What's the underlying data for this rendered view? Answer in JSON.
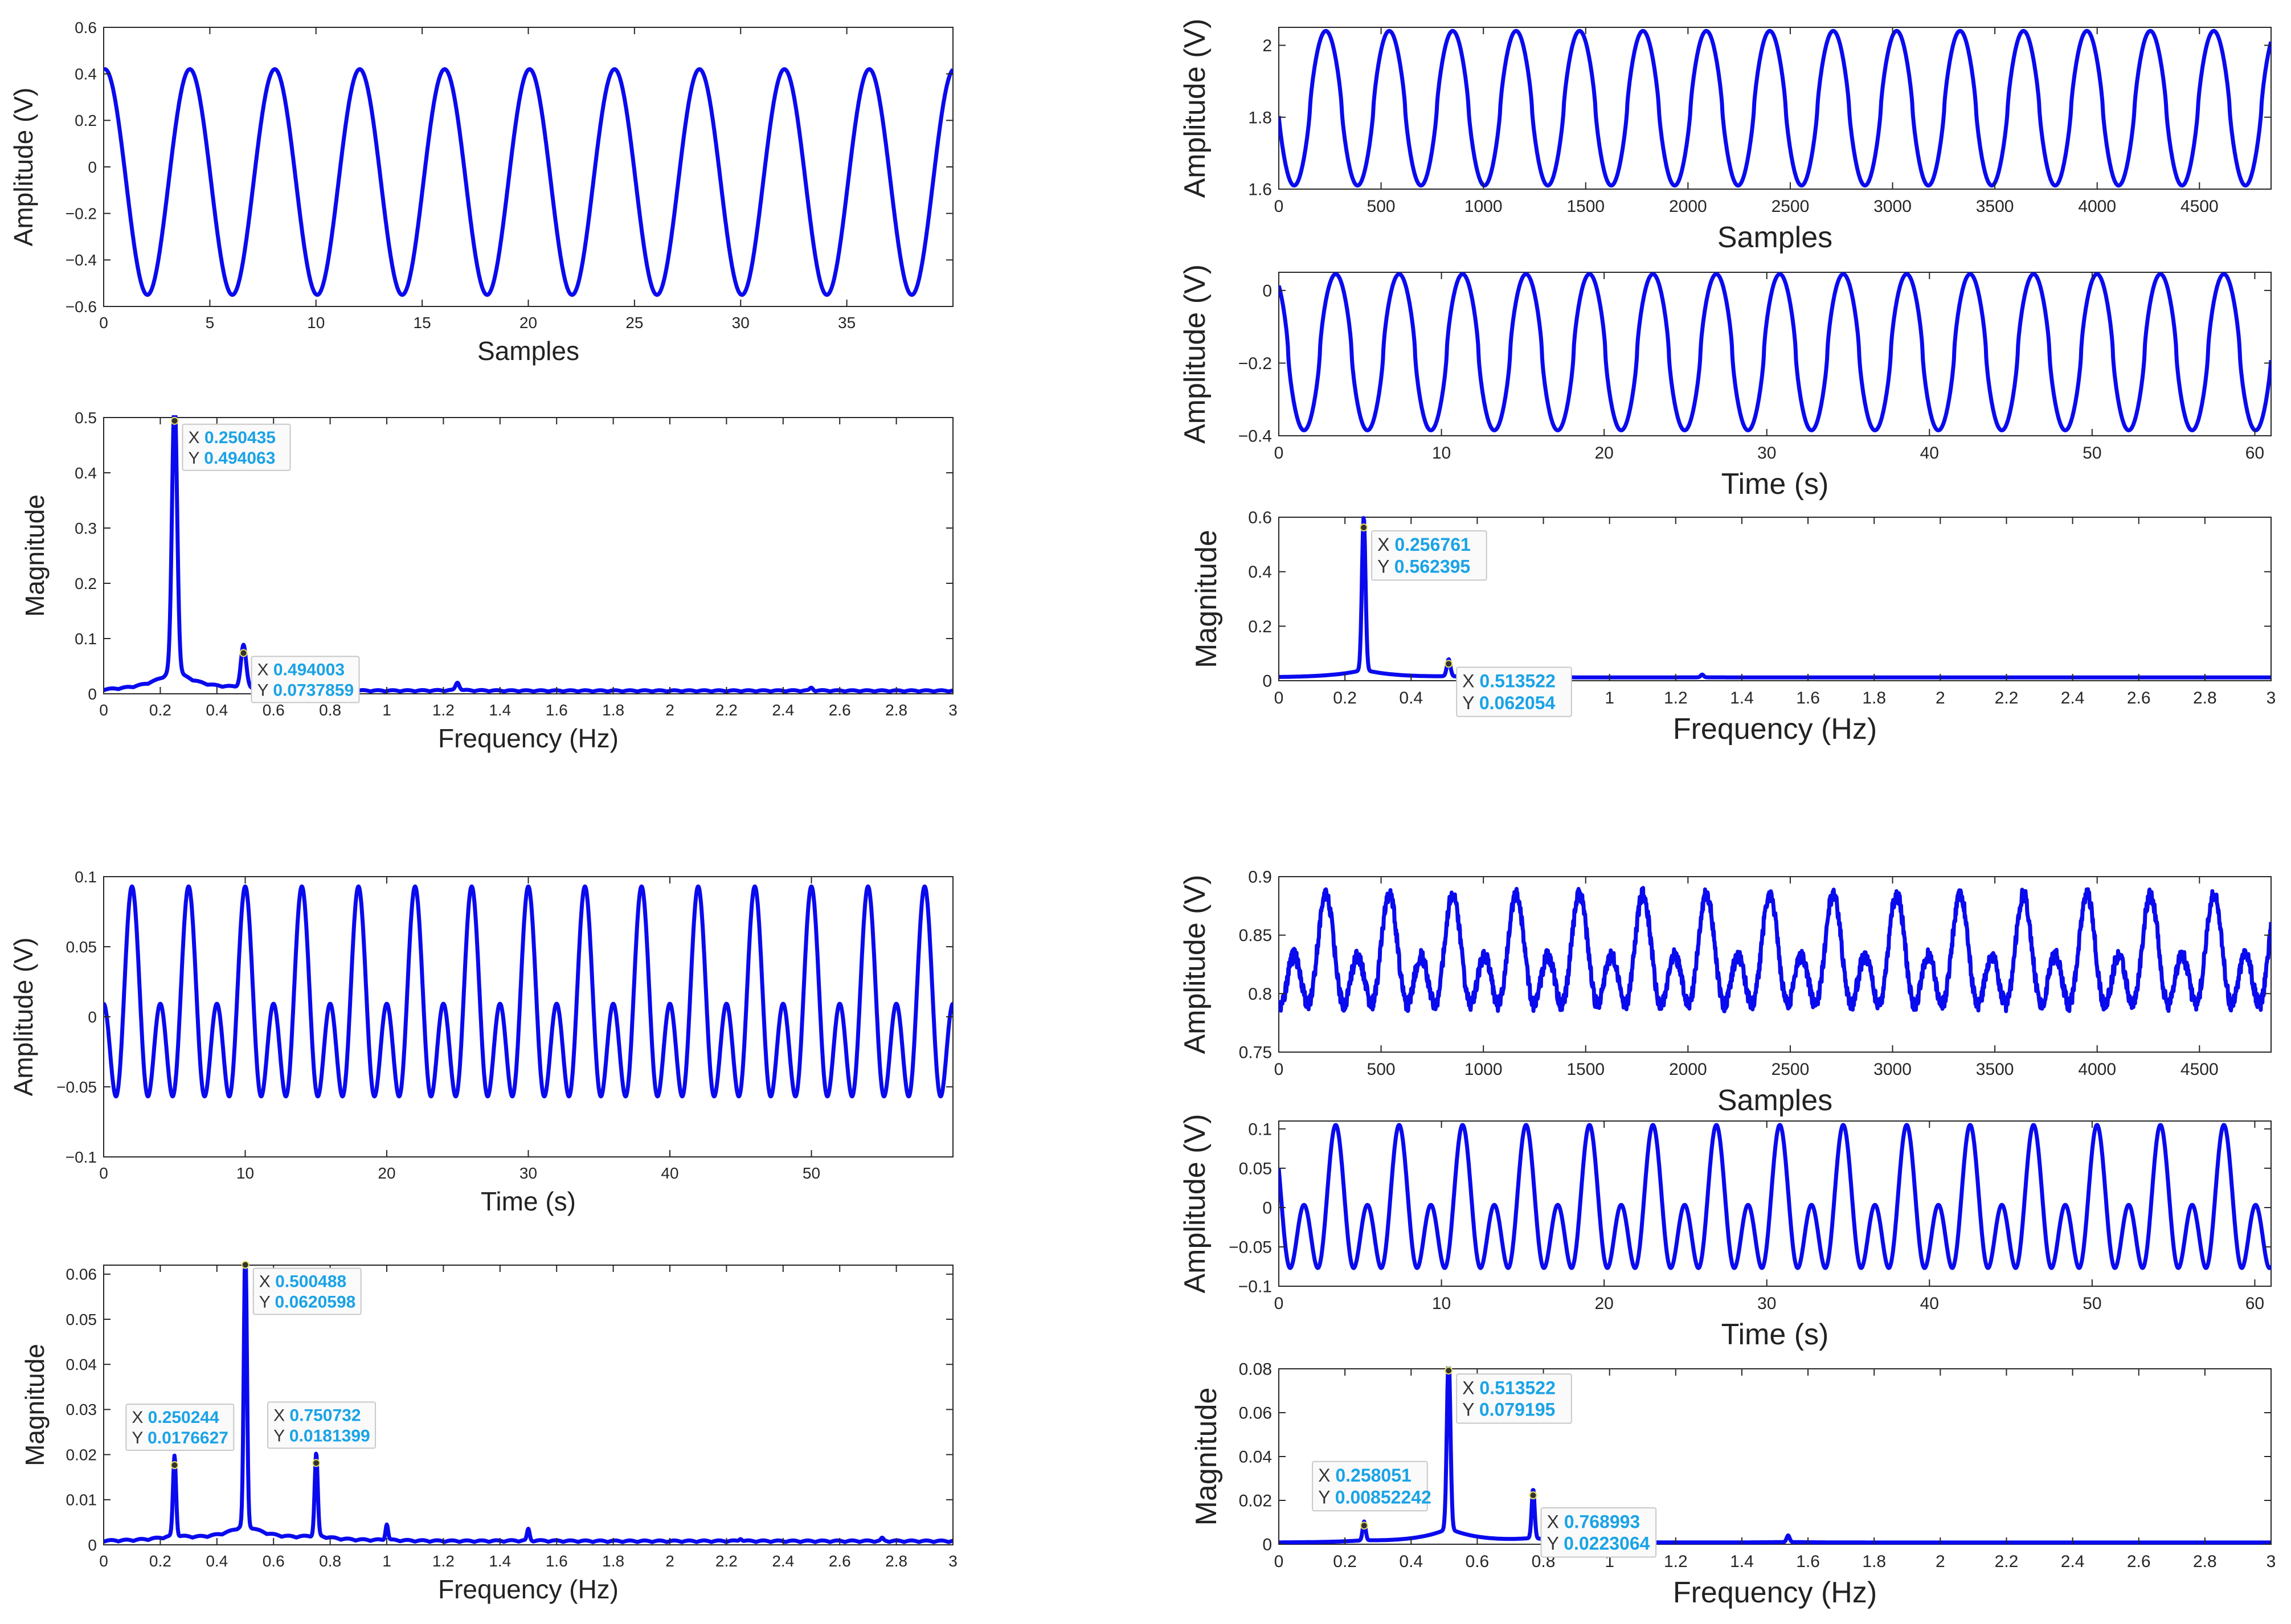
{
  "colors": {
    "line": "#0a0aee",
    "tip_value": "#1aa3e6",
    "axis": "#262626",
    "box": "#ffffff",
    "tip_border": "#c8c8c8",
    "tip_bg": "#fafafa"
  },
  "chart_data": [
    {
      "id": "p1",
      "type": "line",
      "title": "",
      "xlabel": "Samples",
      "ylabel": "Amplitude (V)",
      "xlim": [
        0,
        40
      ],
      "ylim": [
        -0.6,
        0.6
      ],
      "xticks": [
        0,
        5,
        10,
        15,
        20,
        25,
        30,
        35
      ],
      "xticklabels": [
        "0",
        "5",
        "10",
        "15",
        "20",
        "25",
        "30",
        "35"
      ],
      "yticks": [
        -0.6,
        -0.4,
        -0.2,
        0,
        0.2,
        0.4,
        0.6
      ],
      "yticklabels": [
        "−0.6",
        "−0.4",
        "−0.2",
        "0",
        "0.2",
        "0.4",
        "0.6"
      ],
      "series": [
        {
          "name": "signal",
          "kind": "sine",
          "period": 4,
          "phase_x": 0.06,
          "max": 0.42,
          "min": -0.55,
          "sharp": 1.0
        }
      ],
      "datatips": []
    },
    {
      "id": "p2",
      "type": "line",
      "title": "",
      "xlabel": "Frequency (Hz)",
      "ylabel": "Magnitude",
      "xlim": [
        0,
        3
      ],
      "ylim": [
        0,
        0.5
      ],
      "xticks": [
        0,
        0.2,
        0.4,
        0.6,
        0.8,
        1,
        1.2,
        1.4,
        1.6,
        1.8,
        2,
        2.2,
        2.4,
        2.6,
        2.8,
        3
      ],
      "xticklabels": [
        "0",
        "0.2",
        "0.4",
        "0.6",
        "0.8",
        "1",
        "1.2",
        "1.4",
        "1.6",
        "1.8",
        "2",
        "2.2",
        "2.4",
        "2.6",
        "2.8",
        "3"
      ],
      "yticks": [
        0,
        0.1,
        0.2,
        0.3,
        0.4,
        0.5
      ],
      "yticklabels": [
        "0",
        "0.1",
        "0.2",
        "0.3",
        "0.4",
        "0.5"
      ],
      "series": [
        {
          "name": "spectrum",
          "kind": "spectrum",
          "floor": 0.004,
          "leak": 0.08,
          "lobes": true,
          "peaks": [
            [
              0.250435,
              0.494063,
              0.02
            ],
            [
              0.494003,
              0.0737859,
              0.02
            ],
            [
              0.74,
              0.018,
              0.015
            ],
            [
              1.25,
              0.014,
              0.015
            ],
            [
              2.5,
              0.005,
              0.012
            ]
          ]
        }
      ],
      "datatips": [
        {
          "x": 0.250435,
          "y": 0.494063,
          "xlabel": "X",
          "ylabel": "Y",
          "xtext": "0.250435",
          "ytext": "0.494063",
          "side": "right"
        },
        {
          "x": 0.494003,
          "y": 0.0737859,
          "xlabel": "X",
          "ylabel": "Y",
          "xtext": "0.494003",
          "ytext": "0.0737859",
          "side": "right"
        }
      ]
    },
    {
      "id": "p3",
      "type": "line",
      "title": "",
      "xlabel": "Samples",
      "ylabel": "Amplitude (V)",
      "xlim": [
        0,
        4850
      ],
      "ylim": [
        1.6,
        2.05
      ],
      "xticks": [
        0,
        500,
        1000,
        1500,
        2000,
        2500,
        3000,
        3500,
        4000,
        4500
      ],
      "xticklabels": [
        "0",
        "500",
        "1000",
        "1500",
        "2000",
        "2500",
        "3000",
        "3500",
        "4000",
        "4500"
      ],
      "yticks": [
        1.6,
        1.8,
        2
      ],
      "yticklabels": [
        "1.6",
        "1.8",
        "2"
      ],
      "series": [
        {
          "name": "signal",
          "kind": "sine",
          "period": 310,
          "phase_x": 230,
          "max": 2.04,
          "min": 1.61,
          "sharp": 1.3
        }
      ],
      "datatips": []
    },
    {
      "id": "p4",
      "type": "line",
      "title": "",
      "xlabel": "Time (s)",
      "ylabel": "Amplitude (V)",
      "xlim": [
        0,
        61
      ],
      "ylim": [
        -0.4,
        0.05
      ],
      "xticks": [
        0,
        10,
        20,
        30,
        40,
        50,
        60
      ],
      "xticklabels": [
        "0",
        "10",
        "20",
        "30",
        "40",
        "50",
        "60"
      ],
      "yticks": [
        -0.4,
        -0.2,
        0
      ],
      "yticklabels": [
        "−0.4",
        "−0.2",
        "0"
      ],
      "series": [
        {
          "name": "signal",
          "kind": "sine",
          "period": 3.9,
          "phase_x": 3.5,
          "max": 0.045,
          "min": -0.385,
          "sharp": 1.4
        }
      ],
      "datatips": []
    },
    {
      "id": "p5",
      "type": "line",
      "title": "",
      "xlabel": "Frequency (Hz)",
      "ylabel": "Magnitude",
      "xlim": [
        0,
        3
      ],
      "ylim": [
        0,
        0.6
      ],
      "xticks": [
        0,
        0.2,
        0.4,
        0.6,
        0.8,
        1,
        1.2,
        1.4,
        1.6,
        1.8,
        2,
        2.2,
        2.4,
        2.6,
        2.8,
        3
      ],
      "xticklabels": [
        "0",
        "0.2",
        "0.4",
        "0.6",
        "0.8",
        "1",
        "1.2",
        "1.4",
        "1.6",
        "1.8",
        "2",
        "2.2",
        "2.4",
        "2.6",
        "2.8",
        "3"
      ],
      "yticks": [
        0,
        0.2,
        0.4,
        0.6
      ],
      "yticklabels": [
        "0",
        "0.2",
        "0.4",
        "0.6"
      ],
      "series": [
        {
          "name": "spectrum",
          "kind": "spectrum",
          "floor": 0.012,
          "leak": 0.05,
          "lobes": false,
          "peaks": [
            [
              0.256761,
              0.562395,
              0.012
            ],
            [
              0.513522,
              0.062054,
              0.012
            ],
            [
              0.77,
              0.012,
              0.01
            ],
            [
              1.28,
              0.01,
              0.01
            ]
          ]
        }
      ],
      "datatips": [
        {
          "x": 0.256761,
          "y": 0.562395,
          "xlabel": "X",
          "ylabel": "Y",
          "xtext": "0.256761",
          "ytext": "0.562395",
          "side": "right"
        },
        {
          "x": 0.513522,
          "y": 0.062054,
          "xlabel": "X",
          "ylabel": "Y",
          "xtext": "0.513522",
          "ytext": "0.062054",
          "side": "right"
        }
      ]
    },
    {
      "id": "p6",
      "type": "line",
      "title": "",
      "xlabel": "Time (s)",
      "ylabel": "Amplitude (V)",
      "xlim": [
        0,
        60
      ],
      "ylim": [
        -0.1,
        0.1
      ],
      "xticks": [
        0,
        10,
        20,
        30,
        40,
        50
      ],
      "xticklabels": [
        "0",
        "10",
        "20",
        "30",
        "40",
        "50"
      ],
      "yticks": [
        -0.1,
        -0.05,
        0,
        0.05,
        0.1
      ],
      "yticklabels": [
        "−0.1",
        "−0.05",
        "0",
        "0.05",
        "0.1"
      ],
      "series": [
        {
          "name": "signal",
          "kind": "twotone",
          "period": 4,
          "phase_x": 2.0,
          "max": 0.093,
          "min": -0.066,
          "second": 0.022
        }
      ],
      "datatips": []
    },
    {
      "id": "p7",
      "type": "line",
      "title": "",
      "xlabel": "Frequency (Hz)",
      "ylabel": "Magnitude",
      "xlim": [
        0,
        3
      ],
      "ylim": [
        0,
        0.062
      ],
      "xticks": [
        0,
        0.2,
        0.4,
        0.6,
        0.8,
        1,
        1.2,
        1.4,
        1.6,
        1.8,
        2,
        2.2,
        2.4,
        2.6,
        2.8,
        3
      ],
      "xticklabels": [
        "0",
        "0.2",
        "0.4",
        "0.6",
        "0.8",
        "1",
        "1.2",
        "1.4",
        "1.6",
        "1.8",
        "2",
        "2.2",
        "2.4",
        "2.6",
        "2.8",
        "3"
      ],
      "yticks": [
        0,
        0.01,
        0.02,
        0.03,
        0.04,
        0.05,
        0.06
      ],
      "yticklabels": [
        "0",
        "0.01",
        "0.02",
        "0.03",
        "0.04",
        "0.05",
        "0.06"
      ],
      "series": [
        {
          "name": "spectrum",
          "kind": "spectrum",
          "floor": 0.0006,
          "leak": 0.06,
          "lobes": true,
          "peaks": [
            [
              0.250244,
              0.0176627,
              0.012
            ],
            [
              0.500488,
              0.0620598,
              0.012
            ],
            [
              0.750732,
              0.0181399,
              0.012
            ],
            [
              1.0,
              0.0035,
              0.01
            ],
            [
              1.5,
              0.0025,
              0.01
            ],
            [
              2.25,
              0.0006,
              0.01
            ],
            [
              2.75,
              0.0006,
              0.01
            ]
          ]
        }
      ],
      "datatips": [
        {
          "x": 0.500488,
          "y": 0.0620598,
          "xlabel": "X",
          "ylabel": "Y",
          "xtext": "0.500488",
          "ytext": "0.0620598",
          "side": "right"
        },
        {
          "x": 0.250244,
          "y": 0.0176627,
          "xlabel": "X",
          "ylabel": "Y",
          "xtext": "0.250244",
          "ytext": "0.0176627",
          "side": "above"
        },
        {
          "x": 0.750732,
          "y": 0.0181399,
          "xlabel": "X",
          "ylabel": "Y",
          "xtext": "0.750732",
          "ytext": "0.0181399",
          "side": "above"
        }
      ]
    },
    {
      "id": "p8",
      "type": "line",
      "title": "",
      "xlabel": "Samples",
      "ylabel": "Amplitude (V)",
      "xlim": [
        0,
        4850
      ],
      "ylim": [
        0.75,
        0.9
      ],
      "xticks": [
        0,
        500,
        1000,
        1500,
        2000,
        2500,
        3000,
        3500,
        4000,
        4500
      ],
      "xticklabels": [
        "0",
        "500",
        "1000",
        "1500",
        "2000",
        "2500",
        "3000",
        "3500",
        "4000",
        "4500"
      ],
      "yticks": [
        0.75,
        0.8,
        0.85,
        0.9
      ],
      "yticklabels": [
        "0.75",
        "0.8",
        "0.85",
        "0.9"
      ],
      "series": [
        {
          "name": "signal",
          "kind": "twotone",
          "period": 310,
          "phase_x": 230,
          "max": 0.885,
          "min": 0.785,
          "second": 0.855,
          "noise": 0.006
        }
      ],
      "datatips": []
    },
    {
      "id": "p9",
      "type": "line",
      "title": "",
      "xlabel": "Time (s)",
      "ylabel": "Amplitude (V)",
      "xlim": [
        0,
        61
      ],
      "ylim": [
        -0.1,
        0.11
      ],
      "xticks": [
        0,
        10,
        20,
        30,
        40,
        50,
        60
      ],
      "xticklabels": [
        "0",
        "10",
        "20",
        "30",
        "40",
        "50",
        "60"
      ],
      "yticks": [
        -0.1,
        -0.05,
        0,
        0.05,
        0.1
      ],
      "yticklabels": [
        "−0.1",
        "−0.05",
        "0",
        "0.05",
        "0.1"
      ],
      "series": [
        {
          "name": "signal",
          "kind": "twotone",
          "period": 3.9,
          "phase_x": 3.5,
          "max": 0.105,
          "min": -0.088,
          "second": 0.045
        }
      ],
      "datatips": []
    },
    {
      "id": "p10",
      "type": "line",
      "title": "",
      "xlabel": "Frequency (Hz)",
      "ylabel": "Magnitude",
      "xlim": [
        0,
        3
      ],
      "ylim": [
        0,
        0.08
      ],
      "xticks": [
        0,
        0.2,
        0.4,
        0.6,
        0.8,
        1,
        1.2,
        1.4,
        1.6,
        1.8,
        2,
        2.2,
        2.4,
        2.6,
        2.8,
        3
      ],
      "xticklabels": [
        "0",
        "0.2",
        "0.4",
        "0.6",
        "0.8",
        "1",
        "1.2",
        "1.4",
        "1.6",
        "1.8",
        "2",
        "2.2",
        "2.4",
        "2.6",
        "2.8",
        "3"
      ],
      "yticks": [
        0,
        0.02,
        0.04,
        0.06,
        0.08
      ],
      "yticklabels": [
        "0",
        "0.02",
        "0.04",
        "0.06",
        "0.08"
      ],
      "series": [
        {
          "name": "spectrum",
          "kind": "spectrum",
          "floor": 0.0008,
          "leak": 0.08,
          "lobes": false,
          "peaks": [
            [
              0.258051,
              0.00852242,
              0.01
            ],
            [
              0.513522,
              0.079195,
              0.012
            ],
            [
              0.768993,
              0.0223064,
              0.01
            ],
            [
              1.54,
              0.003,
              0.01
            ]
          ]
        }
      ],
      "datatips": [
        {
          "x": 0.513522,
          "y": 0.079195,
          "xlabel": "X",
          "ylabel": "Y",
          "xtext": "0.513522",
          "ytext": "0.079195",
          "side": "right"
        },
        {
          "x": 0.258051,
          "y": 0.00852242,
          "xlabel": "X",
          "ylabel": "Y",
          "xtext": "0.258051",
          "ytext": "0.00852242",
          "side": "above"
        },
        {
          "x": 0.768993,
          "y": 0.0223064,
          "xlabel": "X",
          "ylabel": "Y",
          "xtext": "0.768993",
          "ytext": "0.0223064",
          "side": "below"
        }
      ]
    }
  ]
}
